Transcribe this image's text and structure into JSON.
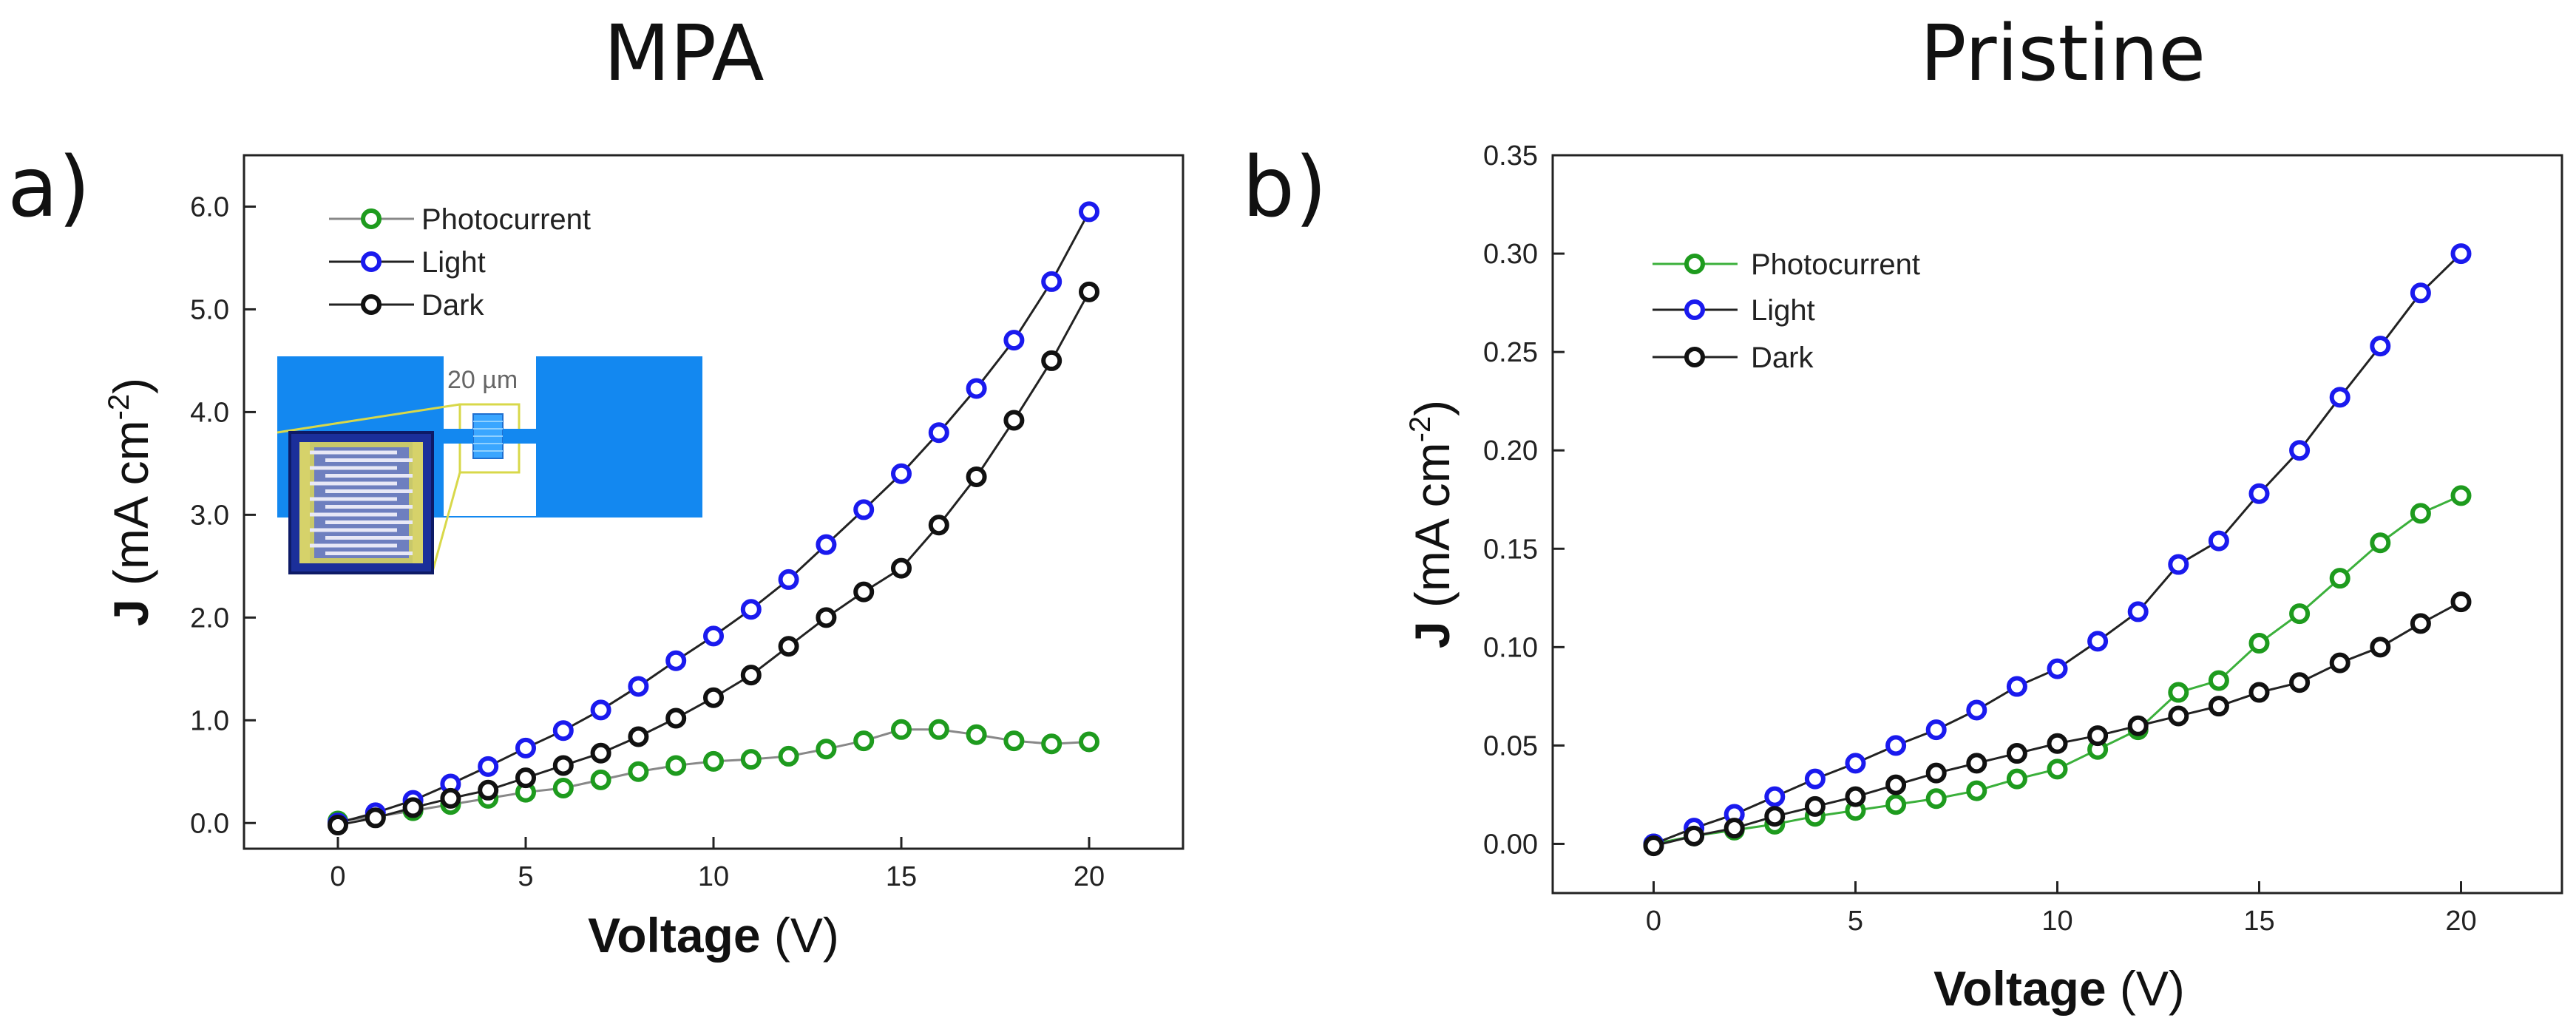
{
  "panel_labels": [
    "a)",
    "b)"
  ],
  "chart_data": [
    {
      "type": "line",
      "title": "MPA",
      "xlabel": {
        "bold": "Voltage",
        "unit": " (V)"
      },
      "ylabel": {
        "bold": "J",
        "unit": " (mA cm",
        "sup": "-2",
        "close": ")"
      },
      "xlim": [
        -2.5,
        22.5
      ],
      "ylim": [
        -0.25,
        6.5
      ],
      "xticks": [
        0,
        5,
        10,
        15,
        20
      ],
      "yticks": [
        0.0,
        1.0,
        2.0,
        3.0,
        4.0,
        5.0,
        6.0
      ],
      "ytick_labels": [
        "0.0",
        "1.0",
        "2.0",
        "3.0",
        "4.0",
        "5.0",
        "6.0"
      ],
      "legend_position": "top-left",
      "inset_label": "20 µm",
      "series": [
        {
          "name": "Photocurrent",
          "color": "#1e9b1e",
          "line_color": "#888888",
          "x": [
            0,
            1,
            2,
            3,
            4,
            5,
            6,
            7,
            8,
            9,
            10,
            11,
            12,
            13,
            14,
            15,
            16,
            17,
            18,
            19,
            20
          ],
          "values": [
            0.02,
            0.06,
            0.12,
            0.18,
            0.24,
            0.3,
            0.34,
            0.42,
            0.5,
            0.56,
            0.6,
            0.62,
            0.65,
            0.72,
            0.8,
            0.91,
            0.91,
            0.86,
            0.8,
            0.77,
            0.79
          ]
        },
        {
          "name": "Light",
          "color": "#1a1aee",
          "line_color": "#222222",
          "x": [
            0,
            1,
            2,
            3,
            4,
            5,
            6,
            7,
            8,
            9,
            10,
            11,
            12,
            13,
            14,
            15,
            16,
            17,
            18,
            19,
            20
          ],
          "values": [
            0.0,
            0.1,
            0.22,
            0.38,
            0.55,
            0.73,
            0.9,
            1.1,
            1.33,
            1.58,
            1.82,
            2.08,
            2.37,
            2.71,
            3.05,
            3.4,
            3.8,
            4.23,
            4.7,
            5.27,
            5.95
          ]
        },
        {
          "name": "Dark",
          "color": "#111111",
          "line_color": "#222222",
          "x": [
            0,
            1,
            2,
            3,
            4,
            5,
            6,
            7,
            8,
            9,
            10,
            11,
            12,
            13,
            14,
            15,
            16,
            17,
            18,
            19,
            20
          ],
          "values": [
            -0.02,
            0.05,
            0.15,
            0.24,
            0.32,
            0.44,
            0.56,
            0.68,
            0.84,
            1.02,
            1.22,
            1.44,
            1.72,
            2.0,
            2.25,
            2.48,
            2.9,
            3.37,
            3.92,
            4.5,
            5.17
          ]
        }
      ]
    },
    {
      "type": "line",
      "title": "Pristine",
      "xlabel": {
        "bold": "Voltage",
        "unit": " (V)"
      },
      "ylabel": {
        "bold": "J",
        "unit": " (mA cm",
        "sup": "-2",
        "close": ")"
      },
      "xlim": [
        -2.5,
        22.5
      ],
      "ylim": [
        -0.025,
        0.35
      ],
      "xticks": [
        0,
        5,
        10,
        15,
        20
      ],
      "yticks": [
        0.0,
        0.05,
        0.1,
        0.15,
        0.2,
        0.25,
        0.3,
        0.35
      ],
      "ytick_labels": [
        "0.00",
        "0.05",
        "0.10",
        "0.15",
        "0.20",
        "0.25",
        "0.30",
        "0.35"
      ],
      "legend_position": "top-left",
      "series": [
        {
          "name": "Photocurrent",
          "color": "#1e9b1e",
          "line_color": "#3bb03b",
          "x": [
            0,
            1,
            2,
            3,
            4,
            5,
            6,
            7,
            8,
            9,
            10,
            11,
            12,
            13,
            14,
            15,
            16,
            17,
            18,
            19,
            20
          ],
          "values": [
            0.0,
            0.004,
            0.007,
            0.01,
            0.014,
            0.017,
            0.02,
            0.023,
            0.027,
            0.033,
            0.038,
            0.048,
            0.058,
            0.077,
            0.083,
            0.102,
            0.117,
            0.135,
            0.153,
            0.168,
            0.177
          ]
        },
        {
          "name": "Light",
          "color": "#1a1aee",
          "line_color": "#222222",
          "x": [
            0,
            1,
            2,
            3,
            4,
            5,
            6,
            7,
            8,
            9,
            10,
            11,
            12,
            13,
            14,
            15,
            16,
            17,
            18,
            19,
            20
          ],
          "values": [
            0.0,
            0.008,
            0.015,
            0.024,
            0.033,
            0.041,
            0.05,
            0.058,
            0.068,
            0.08,
            0.089,
            0.103,
            0.118,
            0.142,
            0.154,
            0.178,
            0.2,
            0.227,
            0.253,
            0.28,
            0.3
          ]
        },
        {
          "name": "Dark",
          "color": "#111111",
          "line_color": "#222222",
          "x": [
            0,
            1,
            2,
            3,
            4,
            5,
            6,
            7,
            8,
            9,
            10,
            11,
            12,
            13,
            14,
            15,
            16,
            17,
            18,
            19,
            20
          ],
          "values": [
            -0.001,
            0.004,
            0.008,
            0.014,
            0.019,
            0.024,
            0.03,
            0.036,
            0.041,
            0.046,
            0.051,
            0.055,
            0.06,
            0.065,
            0.07,
            0.077,
            0.082,
            0.092,
            0.1,
            0.112,
            0.123
          ]
        }
      ]
    }
  ]
}
